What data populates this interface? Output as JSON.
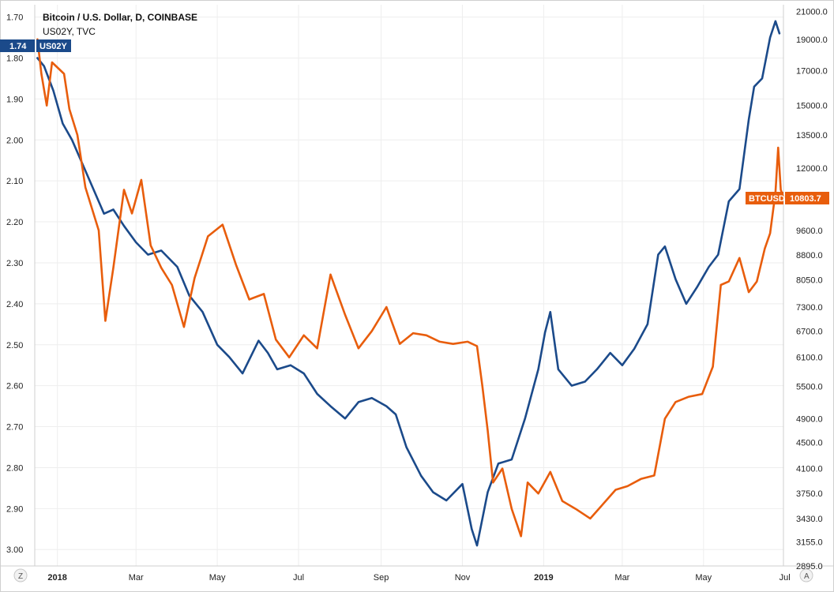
{
  "chart_data": {
    "type": "line",
    "title": "Bitcoin / U.S. Dollar, D, COINBASE",
    "subtitle": "US02Y, TVC",
    "x_ticks": [
      "2018",
      "Mar",
      "May",
      "Jul",
      "Sep",
      "Nov",
      "2019",
      "Mar",
      "May",
      "Jul"
    ],
    "x_ticks_bold": [
      "2018",
      "2019"
    ],
    "x_range": [
      "2017-12-15",
      "2019-06-30"
    ],
    "left_axis": {
      "ticks": [
        "1.70",
        "1.80",
        "1.90",
        "2.00",
        "2.10",
        "2.20",
        "2.30",
        "2.40",
        "2.50",
        "2.60",
        "2.70",
        "2.80",
        "2.90",
        "3.00"
      ],
      "range": [
        1.67,
        3.04
      ],
      "inverted": true
    },
    "right_axis": {
      "ticks": [
        "21000.0",
        "19000.0",
        "17000.0",
        "15000.0",
        "13500.0",
        "12000.0",
        "9600.0",
        "8800.0",
        "8050.0",
        "7300.0",
        "6700.0",
        "6100.0",
        "5500.0",
        "4900.0",
        "4500.0",
        "4100.0",
        "3750.0",
        "3430.0",
        "3155.0",
        "2895.0"
      ],
      "scale": "log",
      "range": [
        2895,
        21500
      ]
    },
    "series": [
      {
        "name": "US02Y",
        "axis": "left",
        "color": "#1b4a8a",
        "last_value_label": "1.74",
        "points": [
          [
            "2017-12-17",
            1.8
          ],
          [
            "2017-12-22",
            1.82
          ],
          [
            "2017-12-29",
            1.88
          ],
          [
            "2018-01-05",
            1.96
          ],
          [
            "2018-01-12",
            2.0
          ],
          [
            "2018-01-20",
            2.06
          ],
          [
            "2018-01-28",
            2.12
          ],
          [
            "2018-02-05",
            2.18
          ],
          [
            "2018-02-12",
            2.17
          ],
          [
            "2018-02-20",
            2.21
          ],
          [
            "2018-03-01",
            2.25
          ],
          [
            "2018-03-10",
            2.28
          ],
          [
            "2018-03-20",
            2.27
          ],
          [
            "2018-04-01",
            2.31
          ],
          [
            "2018-04-10",
            2.38
          ],
          [
            "2018-04-20",
            2.42
          ],
          [
            "2018-05-01",
            2.5
          ],
          [
            "2018-05-10",
            2.53
          ],
          [
            "2018-05-20",
            2.57
          ],
          [
            "2018-06-01",
            2.49
          ],
          [
            "2018-06-08",
            2.52
          ],
          [
            "2018-06-15",
            2.56
          ],
          [
            "2018-06-25",
            2.55
          ],
          [
            "2018-07-05",
            2.57
          ],
          [
            "2018-07-15",
            2.62
          ],
          [
            "2018-07-25",
            2.65
          ],
          [
            "2018-08-05",
            2.68
          ],
          [
            "2018-08-15",
            2.64
          ],
          [
            "2018-08-25",
            2.63
          ],
          [
            "2018-09-05",
            2.65
          ],
          [
            "2018-09-12",
            2.67
          ],
          [
            "2018-09-20",
            2.75
          ],
          [
            "2018-10-01",
            2.82
          ],
          [
            "2018-10-10",
            2.86
          ],
          [
            "2018-10-20",
            2.88
          ],
          [
            "2018-11-01",
            2.84
          ],
          [
            "2018-11-08",
            2.95
          ],
          [
            "2018-11-12",
            2.99
          ],
          [
            "2018-11-20",
            2.86
          ],
          [
            "2018-11-28",
            2.79
          ],
          [
            "2018-12-08",
            2.78
          ],
          [
            "2018-12-18",
            2.68
          ],
          [
            "2018-12-28",
            2.56
          ],
          [
            "2019-01-02",
            2.47
          ],
          [
            "2019-01-06",
            2.42
          ],
          [
            "2019-01-12",
            2.56
          ],
          [
            "2019-01-22",
            2.6
          ],
          [
            "2019-02-01",
            2.59
          ],
          [
            "2019-02-10",
            2.56
          ],
          [
            "2019-02-20",
            2.52
          ],
          [
            "2019-03-01",
            2.55
          ],
          [
            "2019-03-10",
            2.51
          ],
          [
            "2019-03-20",
            2.45
          ],
          [
            "2019-03-28",
            2.28
          ],
          [
            "2019-04-02",
            2.26
          ],
          [
            "2019-04-10",
            2.34
          ],
          [
            "2019-04-18",
            2.4
          ],
          [
            "2019-04-26",
            2.36
          ],
          [
            "2019-05-05",
            2.31
          ],
          [
            "2019-05-12",
            2.28
          ],
          [
            "2019-05-20",
            2.15
          ],
          [
            "2019-05-28",
            2.12
          ],
          [
            "2019-06-04",
            1.95
          ],
          [
            "2019-06-08",
            1.87
          ],
          [
            "2019-06-14",
            1.85
          ],
          [
            "2019-06-20",
            1.75
          ],
          [
            "2019-06-24",
            1.71
          ],
          [
            "2019-06-27",
            1.74
          ]
        ]
      },
      {
        "name": "BTCUSD",
        "axis": "right",
        "color": "#e85d0c",
        "last_value_label": "10803.7",
        "points": [
          [
            "2017-12-17",
            19000
          ],
          [
            "2017-12-20",
            16800
          ],
          [
            "2017-12-24",
            15000
          ],
          [
            "2017-12-28",
            17500
          ],
          [
            "2018-01-06",
            16800
          ],
          [
            "2018-01-10",
            14800
          ],
          [
            "2018-01-16",
            13500
          ],
          [
            "2018-01-22",
            11200
          ],
          [
            "2018-02-01",
            9600
          ],
          [
            "2018-02-06",
            6950
          ],
          [
            "2018-02-12",
            8400
          ],
          [
            "2018-02-20",
            11100
          ],
          [
            "2018-02-26",
            10200
          ],
          [
            "2018-03-05",
            11500
          ],
          [
            "2018-03-12",
            9100
          ],
          [
            "2018-03-20",
            8400
          ],
          [
            "2018-03-28",
            7900
          ],
          [
            "2018-04-06",
            6800
          ],
          [
            "2018-04-14",
            8100
          ],
          [
            "2018-04-24",
            9400
          ],
          [
            "2018-05-05",
            9800
          ],
          [
            "2018-05-15",
            8500
          ],
          [
            "2018-05-25",
            7500
          ],
          [
            "2018-06-05",
            7650
          ],
          [
            "2018-06-14",
            6500
          ],
          [
            "2018-06-24",
            6100
          ],
          [
            "2018-07-05",
            6600
          ],
          [
            "2018-07-15",
            6300
          ],
          [
            "2018-07-25",
            8200
          ],
          [
            "2018-08-05",
            7100
          ],
          [
            "2018-08-15",
            6300
          ],
          [
            "2018-08-25",
            6700
          ],
          [
            "2018-09-05",
            7300
          ],
          [
            "2018-09-15",
            6400
          ],
          [
            "2018-09-25",
            6650
          ],
          [
            "2018-10-05",
            6600
          ],
          [
            "2018-10-15",
            6450
          ],
          [
            "2018-10-25",
            6400
          ],
          [
            "2018-11-05",
            6450
          ],
          [
            "2018-11-12",
            6350
          ],
          [
            "2018-11-16",
            5500
          ],
          [
            "2018-11-20",
            4700
          ],
          [
            "2018-11-24",
            3900
          ],
          [
            "2018-12-01",
            4100
          ],
          [
            "2018-12-08",
            3550
          ],
          [
            "2018-12-15",
            3220
          ],
          [
            "2018-12-20",
            3900
          ],
          [
            "2018-12-28",
            3750
          ],
          [
            "2019-01-06",
            4050
          ],
          [
            "2019-01-15",
            3650
          ],
          [
            "2019-01-25",
            3550
          ],
          [
            "2019-02-05",
            3430
          ],
          [
            "2019-02-14",
            3600
          ],
          [
            "2019-02-24",
            3800
          ],
          [
            "2019-03-05",
            3850
          ],
          [
            "2019-03-15",
            3950
          ],
          [
            "2019-03-25",
            4000
          ],
          [
            "2019-04-02",
            4900
          ],
          [
            "2019-04-10",
            5200
          ],
          [
            "2019-04-20",
            5300
          ],
          [
            "2019-04-30",
            5350
          ],
          [
            "2019-05-08",
            5900
          ],
          [
            "2019-05-14",
            7900
          ],
          [
            "2019-05-20",
            8000
          ],
          [
            "2019-05-28",
            8700
          ],
          [
            "2019-06-04",
            7700
          ],
          [
            "2019-06-10",
            8000
          ],
          [
            "2019-06-16",
            9000
          ],
          [
            "2019-06-20",
            9500
          ],
          [
            "2019-06-24",
            11000
          ],
          [
            "2019-06-26",
            12900
          ],
          [
            "2019-06-28",
            11100
          ],
          [
            "2019-06-30",
            10803.7
          ]
        ]
      }
    ],
    "grid": true,
    "corner_labels": {
      "left": "Z",
      "right": "A"
    }
  }
}
